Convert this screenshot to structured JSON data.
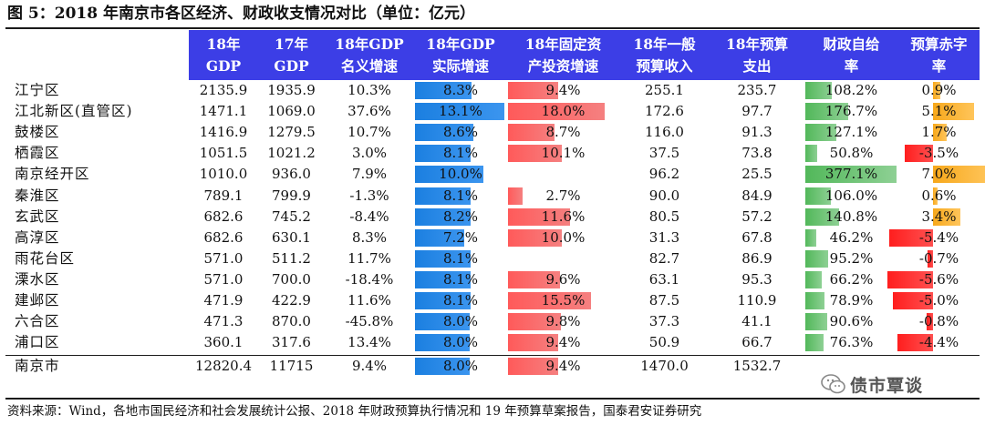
{
  "title": "图 5：2018 年南京市各区经济、财政收支情况对比（单位：亿元）",
  "source": "资料来源：Wind，各地市国民经济和社会发展统计公报、2018 年财政预算执行情况和 19 年预算草案报告，国泰君安证券研究",
  "watermark": "债市覃谈",
  "headers": [
    [
      "18年",
      "GDP"
    ],
    [
      "17年",
      "GDP"
    ],
    [
      "18年GDP",
      "名义增速"
    ],
    [
      "18年GDP",
      "实际增速"
    ],
    [
      "18年固定资",
      "产投资增速"
    ],
    [
      "18年一般",
      "预算收入"
    ],
    [
      "18年预算",
      "支出"
    ],
    [
      "财政自给",
      "率"
    ],
    [
      "预算赤字",
      "率"
    ]
  ],
  "rows": [
    {
      "name": "江宁区",
      "gdp18": "2135.9",
      "gdp17": "1935.9",
      "nominal": "10.3%",
      "real": "8.3%",
      "real_v": 8.3,
      "fai": "9.4%",
      "fai_v": 9.4,
      "income": "255.1",
      "expend": "235.7",
      "self": "108.2%",
      "self_v": 108.2,
      "deficit": "0.9%",
      "deficit_v": 0.9
    },
    {
      "name": "江北新区(直管区)",
      "gdp18": "1471.1",
      "gdp17": "1069.0",
      "nominal": "37.6%",
      "real": "13.1%",
      "real_v": 13.1,
      "fai": "18.0%",
      "fai_v": 18.0,
      "income": "172.6",
      "expend": "97.7",
      "self": "176.7%",
      "self_v": 176.7,
      "deficit": "5.1%",
      "deficit_v": 5.1
    },
    {
      "name": "鼓楼区",
      "gdp18": "1416.9",
      "gdp17": "1279.5",
      "nominal": "10.7%",
      "real": "8.6%",
      "real_v": 8.6,
      "fai": "8.7%",
      "fai_v": 8.7,
      "income": "116.0",
      "expend": "91.3",
      "self": "127.1%",
      "self_v": 127.1,
      "deficit": "1.7%",
      "deficit_v": 1.7
    },
    {
      "name": "栖霞区",
      "gdp18": "1051.5",
      "gdp17": "1021.2",
      "nominal": "3.0%",
      "real": "8.1%",
      "real_v": 8.1,
      "fai": "10.1%",
      "fai_v": 10.1,
      "income": "37.5",
      "expend": "73.8",
      "self": "50.8%",
      "self_v": 50.8,
      "deficit": "-3.5%",
      "deficit_v": -3.5
    },
    {
      "name": "南京经开区",
      "gdp18": "1010.0",
      "gdp17": "936.0",
      "nominal": "7.9%",
      "real": "10.0%",
      "real_v": 10.0,
      "fai": "",
      "fai_v": 0,
      "income": "96.2",
      "expend": "25.5",
      "self": "377.1%",
      "self_v": 377.1,
      "deficit": "7.0%",
      "deficit_v": 7.0
    },
    {
      "name": "秦淮区",
      "gdp18": "789.1",
      "gdp17": "799.9",
      "nominal": "-1.3%",
      "real": "8.1%",
      "real_v": 8.1,
      "fai": "2.7%",
      "fai_v": 2.7,
      "income": "90.0",
      "expend": "84.9",
      "self": "106.0%",
      "self_v": 106.0,
      "deficit": "0.6%",
      "deficit_v": 0.6
    },
    {
      "name": "玄武区",
      "gdp18": "682.6",
      "gdp17": "745.2",
      "nominal": "-8.4%",
      "real": "8.2%",
      "real_v": 8.2,
      "fai": "11.6%",
      "fai_v": 11.6,
      "income": "80.5",
      "expend": "57.2",
      "self": "140.8%",
      "self_v": 140.8,
      "deficit": "3.4%",
      "deficit_v": 3.4
    },
    {
      "name": "高淳区",
      "gdp18": "682.6",
      "gdp17": "630.1",
      "nominal": "8.3%",
      "real": "7.2%",
      "real_v": 7.2,
      "fai": "10.0%",
      "fai_v": 10.0,
      "income": "31.3",
      "expend": "67.8",
      "self": "46.2%",
      "self_v": 46.2,
      "deficit": "-5.4%",
      "deficit_v": -5.4
    },
    {
      "name": "雨花台区",
      "gdp18": "571.0",
      "gdp17": "511.2",
      "nominal": "11.7%",
      "real": "8.1%",
      "real_v": 8.1,
      "fai": "",
      "fai_v": 0,
      "income": "82.7",
      "expend": "86.9",
      "self": "95.2%",
      "self_v": 95.2,
      "deficit": "-0.7%",
      "deficit_v": -0.7
    },
    {
      "name": "溧水区",
      "gdp18": "571.0",
      "gdp17": "700.0",
      "nominal": "-18.4%",
      "real": "8.1%",
      "real_v": 8.1,
      "fai": "9.6%",
      "fai_v": 9.6,
      "income": "63.1",
      "expend": "95.3",
      "self": "66.2%",
      "self_v": 66.2,
      "deficit": "-5.6%",
      "deficit_v": -5.6
    },
    {
      "name": "建邺区",
      "gdp18": "471.9",
      "gdp17": "422.9",
      "nominal": "11.6%",
      "real": "8.1%",
      "real_v": 8.1,
      "fai": "15.5%",
      "fai_v": 15.5,
      "income": "87.5",
      "expend": "110.9",
      "self": "78.9%",
      "self_v": 78.9,
      "deficit": "-5.0%",
      "deficit_v": -5.0
    },
    {
      "name": "六合区",
      "gdp18": "471.3",
      "gdp17": "870.0",
      "nominal": "-45.8%",
      "real": "8.0%",
      "real_v": 8.0,
      "fai": "9.8%",
      "fai_v": 9.8,
      "income": "37.3",
      "expend": "41.1",
      "self": "90.6%",
      "self_v": 90.6,
      "deficit": "-0.8%",
      "deficit_v": -0.8
    },
    {
      "name": "浦口区",
      "gdp18": "360.1",
      "gdp17": "317.6",
      "nominal": "13.4%",
      "real": "8.0%",
      "real_v": 8.0,
      "fai": "9.4%",
      "fai_v": 9.4,
      "income": "50.9",
      "expend": "66.7",
      "self": "76.3%",
      "self_v": 76.3,
      "deficit": "-4.4%",
      "deficit_v": -4.4
    },
    {
      "name": "南京市",
      "gdp18": "12820.4",
      "gdp17": "11715",
      "nominal": "9.4%",
      "real": "8.0%",
      "real_v": 8.0,
      "fai": "9.4%",
      "fai_v": 9.4,
      "income": "1470.0",
      "expend": "1532.7",
      "self": "",
      "self_v": 0,
      "deficit": "",
      "deficit_v": 0
    }
  ]
}
